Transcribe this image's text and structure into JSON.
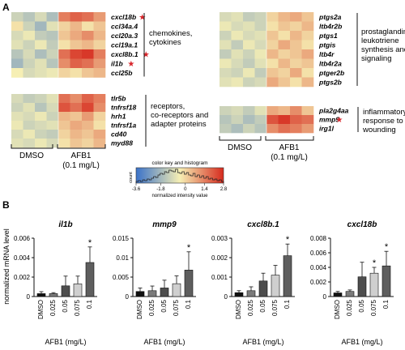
{
  "panel_a": {
    "label": "A",
    "condition_labels": {
      "control": "DMSO",
      "treated": "AFB1",
      "treated_dose": "(0.1 mg/L)"
    },
    "heatmaps": [
      {
        "id": "chemokines",
        "genes": [
          "cxcl18b",
          "ccl34a.4",
          "ccl20a.3",
          "ccl19a.1",
          "cxcl8b.1",
          "il1b",
          "ccl25b"
        ],
        "starred": [
          true,
          false,
          false,
          false,
          true,
          true,
          false
        ],
        "group_label": [
          "chemokines,",
          "cytokines"
        ],
        "values": [
          [
            -0.8,
            -1.2,
            -0.6,
            -1.4,
            1.6,
            2.0,
            1.8,
            1.2
          ],
          [
            0.2,
            -0.8,
            -1.6,
            -0.4,
            0.4,
            0.8,
            0.2,
            0.6
          ],
          [
            -0.6,
            -0.2,
            -1.0,
            -1.2,
            0.6,
            1.0,
            1.4,
            0.8
          ],
          [
            -0.4,
            -0.8,
            -0.2,
            -1.0,
            0.2,
            0.6,
            0.8,
            0.4
          ],
          [
            -1.2,
            -0.6,
            -1.4,
            -0.8,
            1.8,
            2.4,
            2.6,
            1.6
          ],
          [
            -1.6,
            -0.8,
            -0.4,
            -1.2,
            1.4,
            2.0,
            1.8,
            1.2
          ],
          [
            0.0,
            -0.6,
            -0.4,
            -0.2,
            0.4,
            0.2,
            0.6,
            0.8
          ]
        ]
      },
      {
        "id": "prostaglandin",
        "genes": [
          "ptgs2a",
          "ltb4r2b",
          "ptgs1",
          "ptgis",
          "ltb4r",
          "ltb4r2a",
          "ptger2b",
          "ptgs2b"
        ],
        "starred": [
          false,
          false,
          false,
          false,
          false,
          false,
          false,
          false
        ],
        "group_label": [
          "prostaglandin,",
          "leukotriene",
          "synthesis and",
          "signaling"
        ],
        "values": [
          [
            -0.6,
            -0.4,
            -1.0,
            -0.8,
            0.4,
            0.8,
            1.0,
            0.6
          ],
          [
            -0.2,
            -0.6,
            -0.4,
            -0.8,
            0.2,
            0.6,
            0.4,
            0.8
          ],
          [
            -0.8,
            -0.2,
            -0.6,
            -0.4,
            0.6,
            0.2,
            0.8,
            0.4
          ],
          [
            -0.4,
            -1.0,
            -0.2,
            -0.6,
            0.4,
            1.0,
            0.6,
            0.2
          ],
          [
            -1.0,
            -0.4,
            -0.8,
            -0.2,
            0.8,
            0.4,
            0.6,
            1.0
          ],
          [
            -0.2,
            -0.6,
            -1.0,
            -0.4,
            0.2,
            0.8,
            0.4,
            0.6
          ],
          [
            -0.6,
            -0.8,
            -0.2,
            -1.0,
            0.6,
            0.4,
            1.0,
            0.2
          ],
          [
            -0.4,
            -0.2,
            -0.8,
            -0.6,
            1.0,
            0.6,
            0.2,
            0.8
          ]
        ]
      },
      {
        "id": "receptors",
        "genes": [
          "tlr5b",
          "tnfrsf18",
          "hrh1",
          "tnfrsf1a",
          "cd40",
          "myd88"
        ],
        "starred": [
          false,
          false,
          false,
          false,
          false,
          false
        ],
        "group_label": [
          "receptors,",
          "co-receptors and",
          "adapter proteins"
        ],
        "values": [
          [
            -0.6,
            -1.0,
            -0.8,
            -0.4,
            1.8,
            1.4,
            2.0,
            1.6
          ],
          [
            -0.8,
            -0.4,
            -1.2,
            -0.6,
            2.2,
            1.8,
            2.4,
            1.4
          ],
          [
            -0.4,
            -0.6,
            -0.2,
            -0.8,
            0.8,
            0.6,
            1.2,
            0.4
          ],
          [
            -0.2,
            -0.8,
            -0.6,
            -0.4,
            0.6,
            1.0,
            0.8,
            0.2
          ],
          [
            -0.6,
            -0.2,
            -0.8,
            -1.0,
            0.4,
            0.8,
            0.6,
            1.0
          ],
          [
            -0.4,
            -0.6,
            -0.2,
            -0.6,
            0.2,
            0.6,
            0.4,
            0.8
          ]
        ]
      },
      {
        "id": "inflammatory",
        "genes": [
          "pla2g4aa",
          "mmp9",
          "irg1l"
        ],
        "starred": [
          false,
          true,
          false
        ],
        "group_label": [
          "inflammatory",
          "response to",
          "wounding"
        ],
        "values": [
          [
            -0.8,
            -0.6,
            -1.0,
            -0.4,
            1.0,
            0.8,
            1.4,
            0.6
          ],
          [
            -1.2,
            -0.8,
            -1.4,
            -1.0,
            2.2,
            2.6,
            2.0,
            1.8
          ],
          [
            -1.0,
            -1.4,
            -0.8,
            -1.2,
            1.4,
            1.8,
            1.6,
            1.2
          ]
        ]
      }
    ],
    "color_key": {
      "title": "color key and histogram",
      "ylabel": "count",
      "xlabel": "normalized intensity value",
      "ticks": [
        "-3.6",
        "-1.8",
        "0",
        "1.4",
        "2.8"
      ],
      "min": -3.6,
      "max": 2.8,
      "low_color": "#3a72c9",
      "mid_color": "#f6efb4",
      "high_color": "#d62a1e"
    }
  },
  "chart_data": [
    {
      "type": "bar",
      "title": "il1b",
      "categories": [
        "DMSO",
        "0.025",
        "0.05",
        "0.075",
        "0.1"
      ],
      "values": [
        0.0003,
        0.0003,
        0.0011,
        0.0013,
        0.0035
      ],
      "errors": [
        0.0002,
        0.0001,
        0.001,
        0.0008,
        0.0016
      ],
      "significant": [
        false,
        false,
        false,
        false,
        true
      ],
      "yticks": [
        "0",
        "0.002",
        "0.004",
        "0.006"
      ],
      "ylim": [
        0,
        0.006
      ],
      "xlabel": "AFB1 (mg/L)",
      "ylabel": "normalized mRNA level"
    },
    {
      "type": "bar",
      "title": "mmp9",
      "categories": [
        "DMSO",
        "0.025",
        "0.05",
        "0.075",
        "0.1"
      ],
      "values": [
        0.0013,
        0.0015,
        0.0022,
        0.0033,
        0.0068
      ],
      "errors": [
        0.0009,
        0.0012,
        0.002,
        0.002,
        0.0047
      ],
      "significant": [
        false,
        false,
        false,
        false,
        true
      ],
      "yticks": [
        "0",
        "0.005",
        "0.01",
        "0.015"
      ],
      "ylim": [
        0,
        0.015
      ],
      "xlabel": "AFB1 (mg/L)",
      "ylabel": ""
    },
    {
      "type": "bar",
      "title": "cxcl8b.1",
      "categories": [
        "DMSO",
        "0.025",
        "0.05",
        "0.075",
        "0.1"
      ],
      "values": [
        0.0002,
        0.0003,
        0.0008,
        0.0011,
        0.0021
      ],
      "errors": [
        0.0001,
        0.0002,
        0.0004,
        0.0005,
        0.0006
      ],
      "significant": [
        false,
        false,
        false,
        false,
        true
      ],
      "yticks": [
        "0",
        "0.001",
        "0.002",
        "0.003"
      ],
      "ylim": [
        0,
        0.003
      ],
      "xlabel": "AFB1 (mg/L)",
      "ylabel": ""
    },
    {
      "type": "bar",
      "title": "cxcl18b",
      "categories": [
        "DMSO",
        "0.025",
        "0.05",
        "0.075",
        "0.1"
      ],
      "values": [
        0.0005,
        0.0007,
        0.0027,
        0.0032,
        0.0042
      ],
      "errors": [
        0.0002,
        0.0002,
        0.002,
        0.0008,
        0.002
      ],
      "significant": [
        false,
        false,
        false,
        true,
        true
      ],
      "yticks": [
        "0",
        "0.002",
        "0.004",
        "0.006",
        "0.008"
      ],
      "ylim": [
        0,
        0.008
      ],
      "xlabel": "AFB1 (mg/L)",
      "ylabel": ""
    }
  ],
  "panel_b": {
    "label": "B",
    "star_symbol": "*"
  },
  "bar_colors": [
    "#111111",
    "#7a7a7a",
    "#4d4d4d",
    "#cfcfcf",
    "#5e5e5e"
  ],
  "star_color": "#d8262c"
}
